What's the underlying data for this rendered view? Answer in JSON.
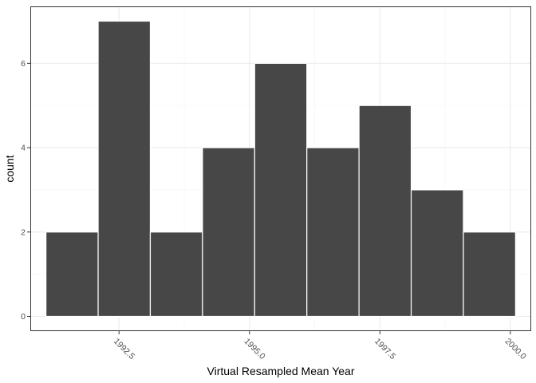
{
  "chart_data": {
    "type": "bar",
    "subtype": "histogram",
    "xlabel": "Virtual Resampled Mean Year",
    "ylabel": "count",
    "bins": [
      {
        "x0": 1991.1,
        "x1": 1992.1,
        "count": 2
      },
      {
        "x0": 1992.1,
        "x1": 1993.1,
        "count": 7
      },
      {
        "x0": 1993.1,
        "x1": 1994.1,
        "count": 2
      },
      {
        "x0": 1994.1,
        "x1": 1995.1,
        "count": 4
      },
      {
        "x0": 1995.1,
        "x1": 1996.1,
        "count": 6
      },
      {
        "x0": 1996.1,
        "x1": 1997.1,
        "count": 4
      },
      {
        "x0": 1997.1,
        "x1": 1998.1,
        "count": 5
      },
      {
        "x0": 1998.1,
        "x1": 1999.1,
        "count": 3
      },
      {
        "x0": 1999.1,
        "x1": 2000.1,
        "count": 2
      }
    ],
    "xlim": [
      1990.8,
      2000.4
    ],
    "ylim": [
      -0.35,
      7.35
    ],
    "x_ticks": [
      1992.5,
      1995.0,
      1997.5,
      2000.0
    ],
    "x_tick_labels": [
      "1992.5",
      "1995.0",
      "1997.5",
      "2000.0"
    ],
    "y_ticks": [
      0,
      2,
      4,
      6
    ],
    "y_tick_labels": [
      "0",
      "2",
      "4",
      "6"
    ],
    "grid": true,
    "theme": "bw",
    "bar_fill": "#474747",
    "bar_outline": "#ffffff",
    "panel_border": "#333333",
    "grid_major_color": "#ebebeb",
    "grid_minor_color": "#f5f5f5"
  }
}
